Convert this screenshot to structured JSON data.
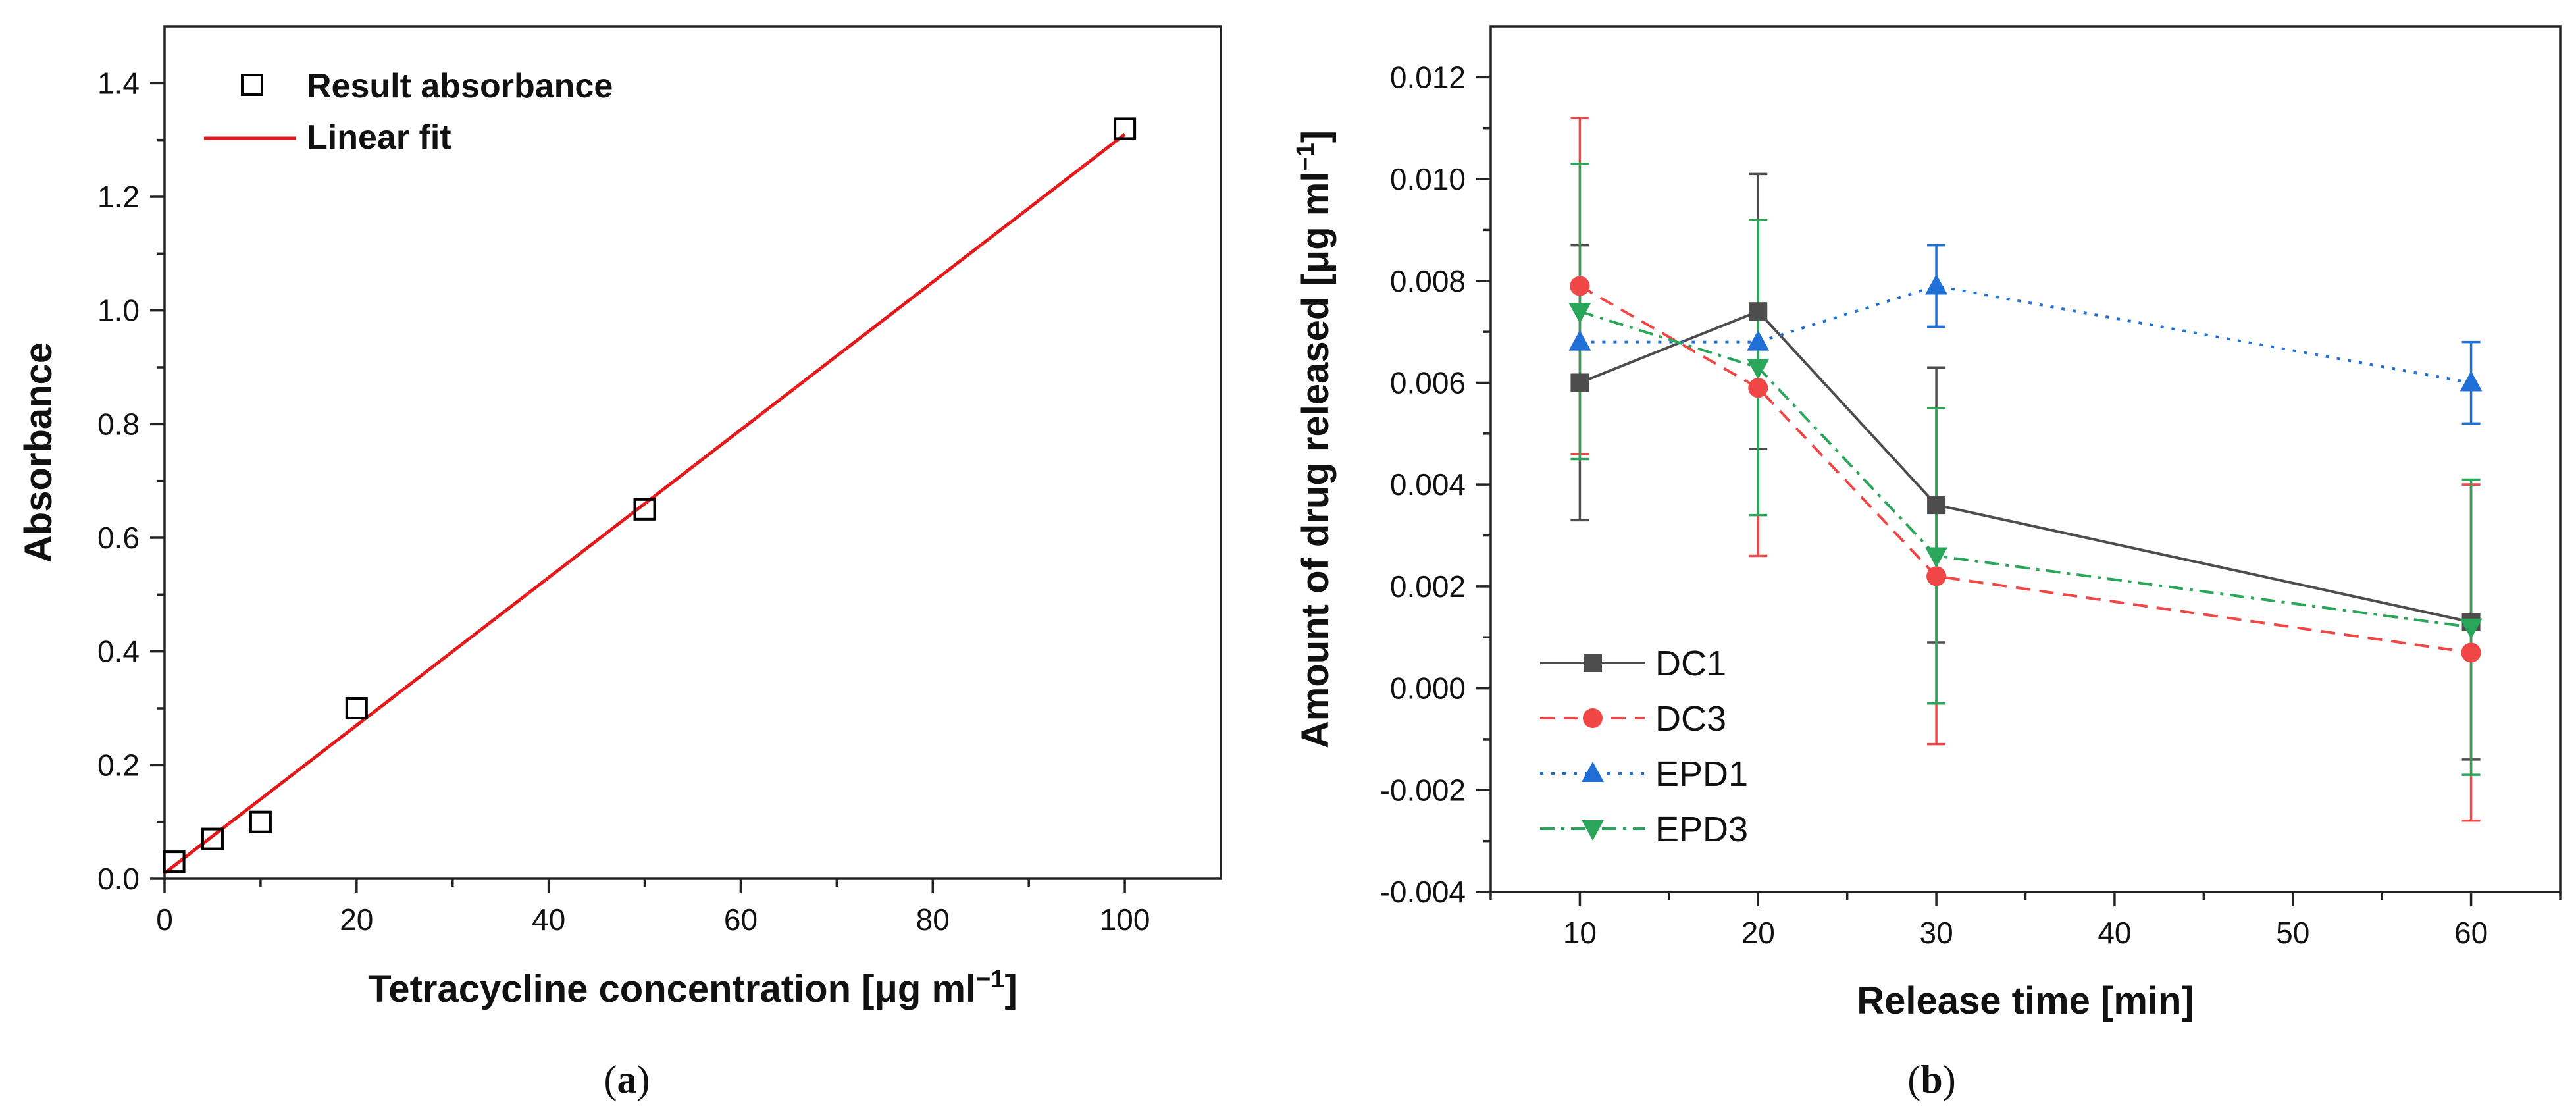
{
  "chart_data": [
    {
      "panel": "a",
      "type": "scatter",
      "xlabel": "Tetracycline concentration [μg ml",
      "xlabel_sup": "−1",
      "xlabel_close": "]",
      "ylabel": "Absorbance",
      "xlim": [
        0,
        110
      ],
      "ylim": [
        0,
        1.5
      ],
      "xticks": [
        0,
        20,
        40,
        60,
        80,
        100
      ],
      "xtick_labels": [
        "0",
        "20",
        "40",
        "60",
        "80",
        "100"
      ],
      "yticks": [
        0.0,
        0.2,
        0.4,
        0.6,
        0.8,
        1.0,
        1.2,
        1.4
      ],
      "ytick_labels": [
        "0.0",
        "0.2",
        "0.4",
        "0.6",
        "0.8",
        "1.0",
        "1.2",
        "1.4"
      ],
      "series": [
        {
          "name": "Result absorbance",
          "kind": "points",
          "marker": "open-square",
          "color": "#000000",
          "x": [
            1,
            5,
            10,
            20,
            50,
            100
          ],
          "y": [
            0.03,
            0.07,
            0.1,
            0.3,
            0.65,
            1.32
          ]
        },
        {
          "name": "Linear fit",
          "kind": "line",
          "color": "#e31a1c",
          "x": [
            0,
            100
          ],
          "y": [
            0.01,
            1.31
          ]
        }
      ],
      "legend": "top-left",
      "panel_label_open": "(",
      "panel_label": "a",
      "panel_label_close": ")"
    },
    {
      "panel": "b",
      "type": "line",
      "xlabel": "Release time [min]",
      "ylabel": "Amount of drug released [μg ml",
      "ylabel_sup": "−1",
      "ylabel_close": "]",
      "xlim": [
        5,
        65
      ],
      "ylim": [
        -0.004,
        0.013
      ],
      "xticks": [
        10,
        20,
        30,
        40,
        50,
        60
      ],
      "xtick_labels": [
        "10",
        "20",
        "30",
        "40",
        "50",
        "60"
      ],
      "yticks": [
        -0.004,
        -0.002,
        0.0,
        0.002,
        0.004,
        0.006,
        0.008,
        0.01,
        0.012
      ],
      "ytick_labels": [
        "-0.004",
        "-0.002",
        "0.000",
        "0.002",
        "0.004",
        "0.006",
        "0.008",
        "0.010",
        "0.012"
      ],
      "x": [
        10,
        20,
        30,
        60
      ],
      "series": [
        {
          "name": "DC1",
          "color": "#4d4d4d",
          "marker": "square",
          "dash": "solid",
          "values": [
            0.006,
            0.0074,
            0.0036,
            0.0013
          ],
          "errors": [
            0.0027,
            0.0027,
            0.0027,
            0.0027
          ]
        },
        {
          "name": "DC3",
          "color": "#f04646",
          "marker": "circle",
          "dash": "dashed",
          "values": [
            0.0079,
            0.0059,
            0.0022,
            0.0007
          ],
          "errors": [
            0.0033,
            0.0033,
            0.0033,
            0.0033
          ]
        },
        {
          "name": "EPD1",
          "color": "#1f6fd6",
          "marker": "triangle-up",
          "dash": "dotted",
          "values": [
            0.0068,
            0.0068,
            0.0079,
            0.006
          ],
          "errors": [
            0.0,
            0.0,
            0.0008,
            0.0008
          ]
        },
        {
          "name": "EPD3",
          "color": "#2aa65a",
          "marker": "triangle-down",
          "dash": "dashdot",
          "values": [
            0.0074,
            0.0063,
            0.0026,
            0.0012
          ],
          "errors": [
            0.0029,
            0.0029,
            0.0029,
            0.0029
          ]
        }
      ],
      "legend": "bottom-left",
      "panel_label_open": "(",
      "panel_label": "b",
      "panel_label_close": ")"
    }
  ]
}
